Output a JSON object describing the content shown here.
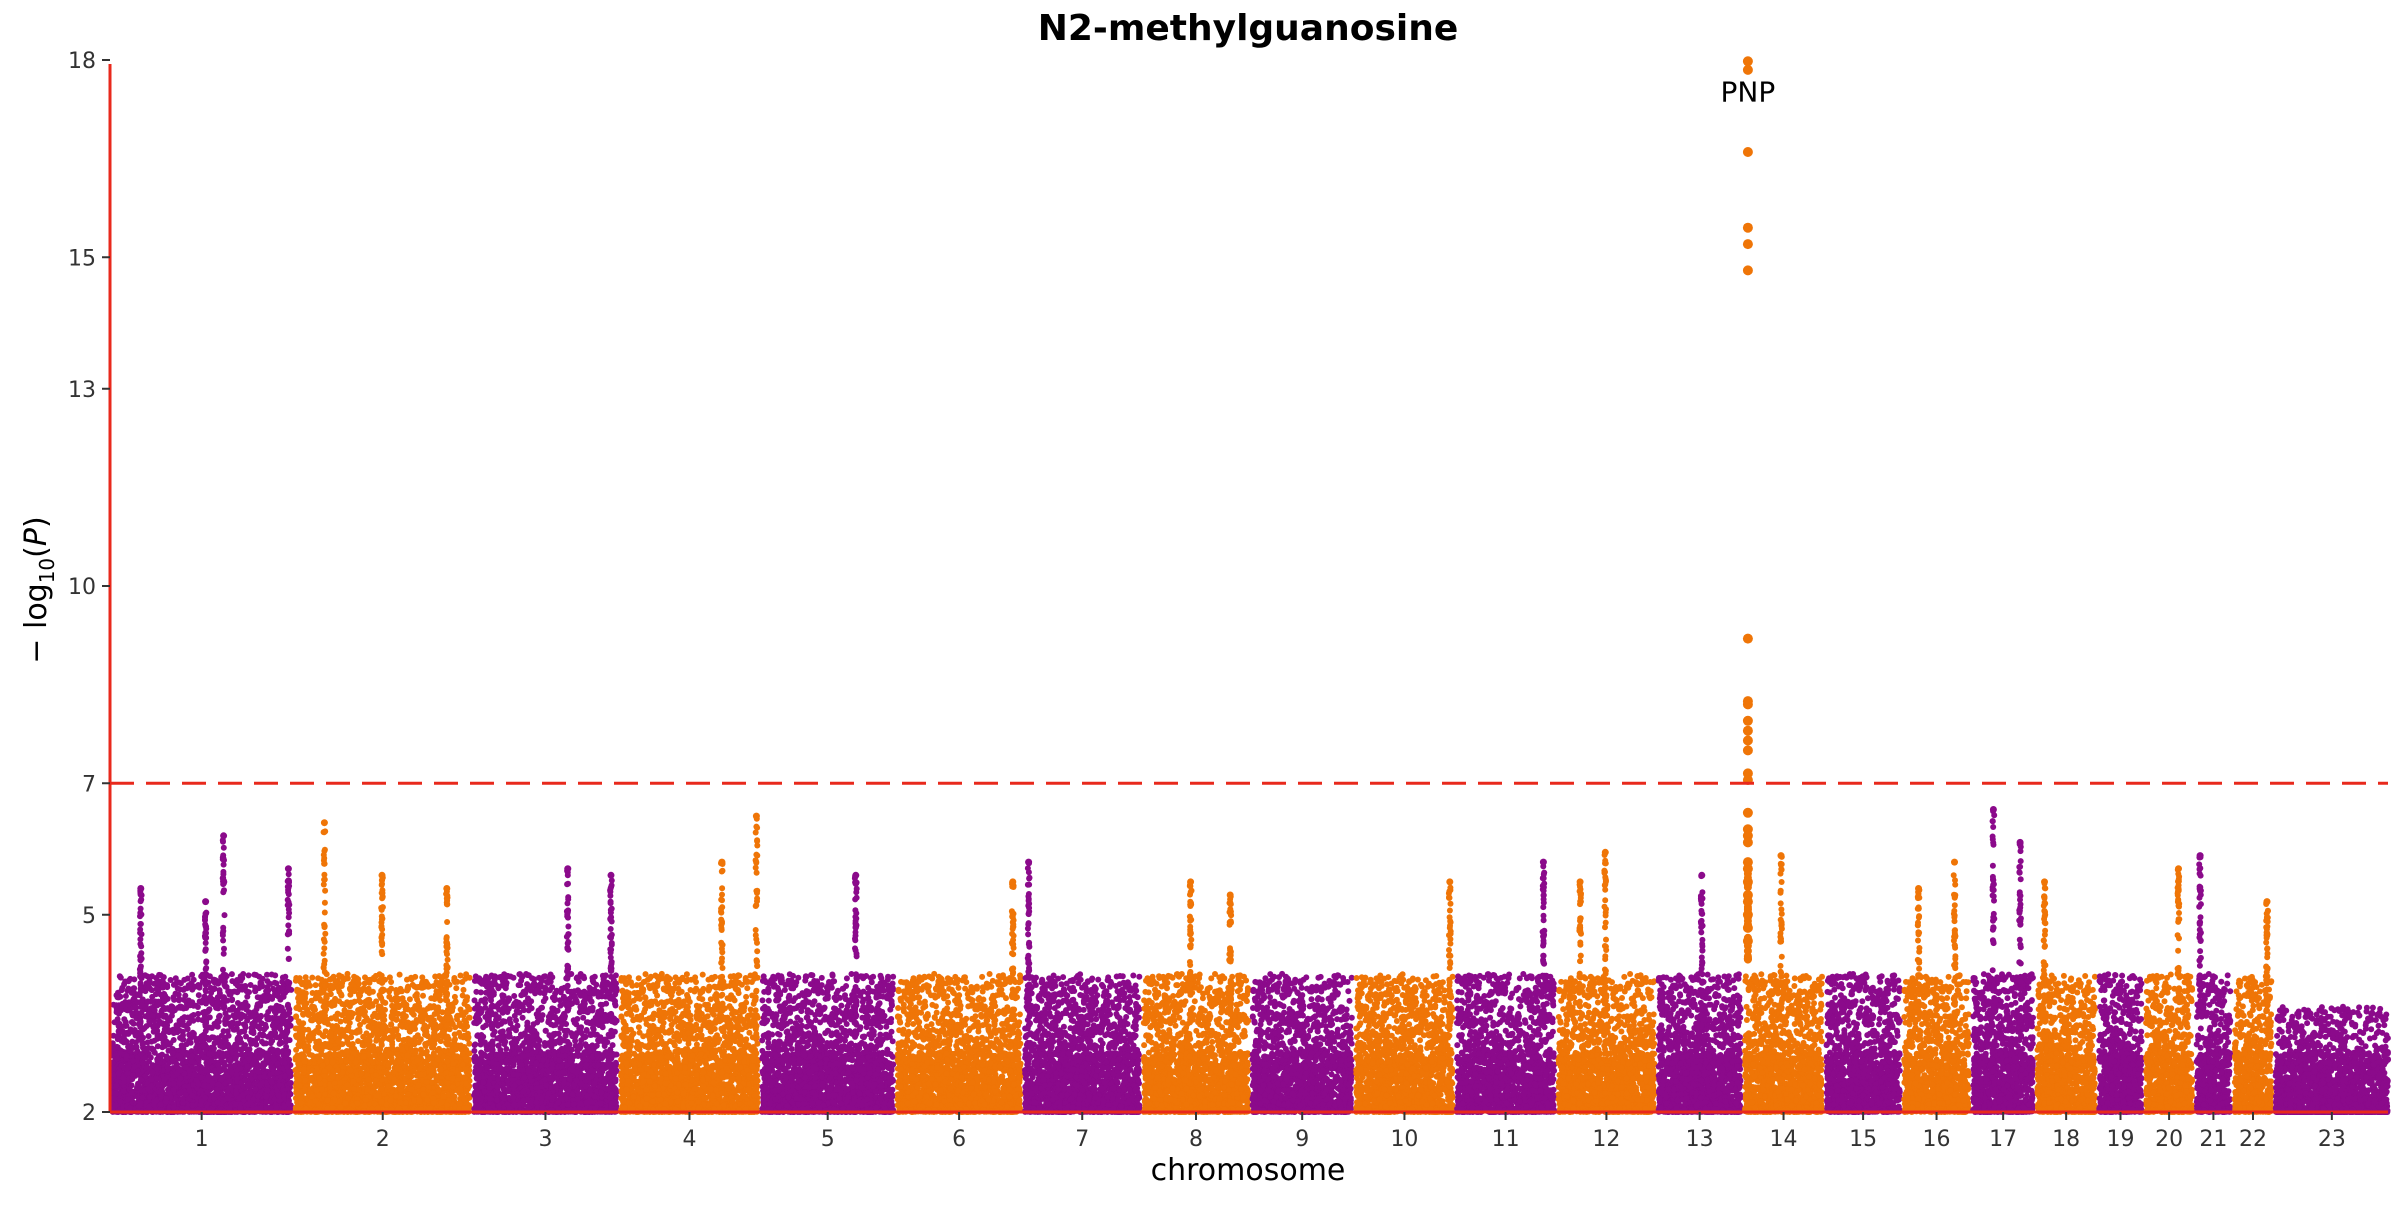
{
  "chart_data": {
    "type": "scatter",
    "title": "N2-methylguanosine",
    "xlabel": "chromosome",
    "ylabel": "-log10(P)",
    "ylim": [
      2,
      18
    ],
    "yticks": [
      2,
      5,
      7,
      10,
      13,
      15,
      18
    ],
    "significance_threshold": 7,
    "threshold_color": "#e8291c",
    "axis_color": "#e8291c",
    "colors": {
      "odd": "#8b0a8b",
      "even": "#ef7507"
    },
    "grid": false,
    "legend": "none",
    "chromosomes": [
      {
        "label": "1",
        "length": 249
      },
      {
        "label": "2",
        "length": 242
      },
      {
        "label": "3",
        "length": 198
      },
      {
        "label": "4",
        "length": 190
      },
      {
        "label": "5",
        "length": 182
      },
      {
        "label": "6",
        "length": 171
      },
      {
        "label": "7",
        "length": 159
      },
      {
        "label": "8",
        "length": 145
      },
      {
        "label": "9",
        "length": 138
      },
      {
        "label": "10",
        "length": 134
      },
      {
        "label": "11",
        "length": 135
      },
      {
        "label": "12",
        "length": 133
      },
      {
        "label": "13",
        "length": 114
      },
      {
        "label": "14",
        "length": 107
      },
      {
        "label": "15",
        "length": 102
      },
      {
        "label": "16",
        "length": 90
      },
      {
        "label": "17",
        "length": 83
      },
      {
        "label": "18",
        "length": 80
      },
      {
        "label": "19",
        "length": 59
      },
      {
        "label": "20",
        "length": 64
      },
      {
        "label": "21",
        "length": 47
      },
      {
        "label": "22",
        "length": 51
      },
      {
        "label": "23",
        "length": 156
      }
    ],
    "peaks": [
      {
        "chr": "1",
        "pos": 40,
        "max": 5.4
      },
      {
        "chr": "1",
        "pos": 130,
        "max": 5.2
      },
      {
        "chr": "1",
        "pos": 155,
        "max": 6.2
      },
      {
        "chr": "1",
        "pos": 245,
        "max": 5.7
      },
      {
        "chr": "2",
        "pos": 40,
        "max": 6.4
      },
      {
        "chr": "2",
        "pos": 120,
        "max": 5.6
      },
      {
        "chr": "2",
        "pos": 210,
        "max": 5.4
      },
      {
        "chr": "3",
        "pos": 130,
        "max": 5.7
      },
      {
        "chr": "3",
        "pos": 190,
        "max": 5.6
      },
      {
        "chr": "4",
        "pos": 140,
        "max": 5.8
      },
      {
        "chr": "4",
        "pos": 188,
        "max": 6.5
      },
      {
        "chr": "5",
        "pos": 130,
        "max": 5.6
      },
      {
        "chr": "6",
        "pos": 160,
        "max": 5.5
      },
      {
        "chr": "7",
        "pos": 5,
        "max": 5.8
      },
      {
        "chr": "8",
        "pos": 65,
        "max": 5.5
      },
      {
        "chr": "8",
        "pos": 120,
        "max": 5.3
      },
      {
        "chr": "10",
        "pos": 130,
        "max": 5.5
      },
      {
        "chr": "11",
        "pos": 120,
        "max": 5.8
      },
      {
        "chr": "12",
        "pos": 30,
        "max": 5.5
      },
      {
        "chr": "12",
        "pos": 65,
        "max": 5.95
      },
      {
        "chr": "13",
        "pos": 60,
        "max": 5.6
      },
      {
        "chr": "14",
        "pos": 50,
        "max": 5.9
      },
      {
        "chr": "16",
        "pos": 20,
        "max": 5.4
      },
      {
        "chr": "16",
        "pos": 70,
        "max": 5.8
      },
      {
        "chr": "17",
        "pos": 28,
        "max": 6.6
      },
      {
        "chr": "17",
        "pos": 65,
        "max": 6.1
      },
      {
        "chr": "18",
        "pos": 10,
        "max": 5.5
      },
      {
        "chr": "20",
        "pos": 45,
        "max": 5.7
      },
      {
        "chr": "21",
        "pos": 5,
        "max": 5.9
      },
      {
        "chr": "22",
        "pos": 45,
        "max": 5.2
      }
    ],
    "highlight": {
      "chr": "14",
      "pos": 4,
      "gene": "PNP",
      "values": [
        17.98,
        17.85,
        16.6,
        15.45,
        15.2,
        14.8,
        9.2,
        8.25,
        8.2,
        7.95,
        7.8,
        7.65,
        7.5,
        7.15,
        7.05,
        6.55,
        6.3,
        6.2,
        6.1,
        5.8,
        5.7,
        5.5,
        5.3,
        5.2,
        5.0,
        4.8,
        4.6
      ]
    }
  }
}
